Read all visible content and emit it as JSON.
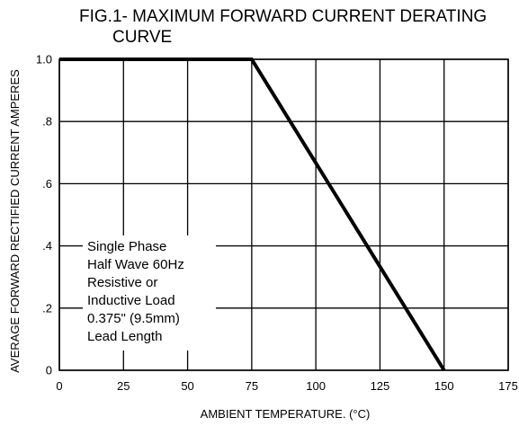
{
  "chart_data": {
    "type": "line",
    "title": "FIG.1- MAXIMUM FORWARD CURRENT DERATING CURVE",
    "title_lines": [
      "FIG.1- MAXIMUM FORWARD CURRENT DERATING",
      "CURVE"
    ],
    "xlabel": "AMBIENT TEMPERATURE. (°C)",
    "ylabel": "AVERAGE FORWARD RECTIFIED CURRENT AMPERES",
    "xlim": [
      0,
      175
    ],
    "ylim": [
      0,
      1.0
    ],
    "x_ticks": [
      0,
      25,
      50,
      75,
      100,
      125,
      150,
      175
    ],
    "x_tick_labels": [
      "0",
      "25",
      "50",
      "75",
      "100",
      "125",
      "150",
      "175"
    ],
    "y_ticks": [
      0,
      0.2,
      0.4,
      0.6,
      0.8,
      1.0
    ],
    "y_tick_labels": [
      "0",
      ".2",
      ".4",
      ".6",
      ".8",
      "1.0"
    ],
    "grid": true,
    "series": [
      {
        "x": [
          0,
          75,
          150
        ],
        "y": [
          1.0,
          1.0,
          0
        ]
      }
    ],
    "annotation": {
      "lines": [
        "Single Phase",
        "Half Wave 60Hz",
        "Resistive or",
        "Inductive Load",
        "0.375\" (9.5mm)",
        "Lead Length"
      ]
    },
    "colors": {
      "line": "#000000",
      "grid": "#000000",
      "background": "#ffffff"
    }
  }
}
